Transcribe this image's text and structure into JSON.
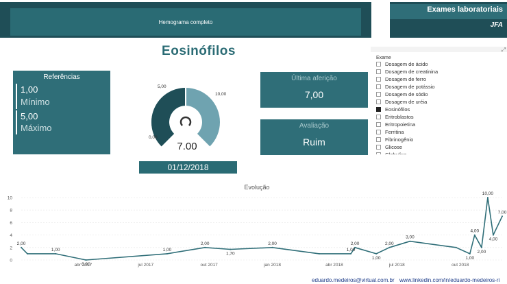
{
  "header": {
    "tab_label": "Hemograma completo",
    "app_title": "Exames laboratoriais",
    "app_subtitle": "JFA"
  },
  "exam": {
    "title": "Eosinófilos"
  },
  "references": {
    "heading": "Referências",
    "min_value": "1,00",
    "min_label": "Mínimo",
    "max_value": "5,00",
    "max_label": "Máximo"
  },
  "gauge": {
    "min_label": "0,00",
    "target_label": "5,00",
    "max_label": "10,00",
    "value_label": "7.00",
    "min": 0,
    "max": 10,
    "value": 7,
    "target": 5,
    "date": "01/12/2018"
  },
  "cards": {
    "last_label": "Última aferição",
    "last_value": "7,00",
    "eval_label": "Avaliação",
    "eval_value": "Ruim"
  },
  "slicer": {
    "header": "Exame",
    "items": [
      {
        "label": "Dosagem de ácido",
        "checked": false
      },
      {
        "label": "Dosagem de creatinina",
        "checked": false
      },
      {
        "label": "Dosagem de ferro",
        "checked": false
      },
      {
        "label": "Dosagem de potássio",
        "checked": false
      },
      {
        "label": "Dosagem de sódio",
        "checked": false
      },
      {
        "label": "Dosagem de uréia",
        "checked": false
      },
      {
        "label": "Eosinófilos",
        "checked": true
      },
      {
        "label": "Eritroblastos",
        "checked": false
      },
      {
        "label": "Eritropoietina",
        "checked": false
      },
      {
        "label": "Ferritina",
        "checked": false
      },
      {
        "label": "Fibrinogênio",
        "checked": false
      },
      {
        "label": "Glicose",
        "checked": false
      },
      {
        "label": "Globulina",
        "checked": false
      }
    ]
  },
  "evolution_title": "Evolução",
  "colors": {
    "dark_teal": "#1f4e57",
    "teal": "#2f6e78",
    "gauge_fill": "#6fa3b0",
    "line": "#2f6e78"
  },
  "chart_data": {
    "type": "line",
    "title": "Evolução",
    "xlabel": "",
    "ylabel": "",
    "ylim": [
      0,
      10
    ],
    "y_ticks": [
      "0",
      "2",
      "4",
      "6",
      "8",
      "10"
    ],
    "x_ticks": [
      "abr 2017",
      "jul 2017",
      "out 2017",
      "jan 2018",
      "abr 2018",
      "jul 2018",
      "out 2018"
    ],
    "x_tick_dates": [
      "2017-04-01",
      "2017-07-01",
      "2017-10-01",
      "2018-01-01",
      "2018-04-01",
      "2018-07-01",
      "2018-10-01"
    ],
    "x_range": [
      "2017-01-01",
      "2018-12-01"
    ],
    "grid": true,
    "series": [
      {
        "points": [
          {
            "x": "2017-01-01",
            "y": 2.0,
            "label": "2,00"
          },
          {
            "x": "2017-01-10",
            "y": 1.0,
            "label": ""
          },
          {
            "x": "2017-02-20",
            "y": 1.0,
            "label": "1,00"
          },
          {
            "x": "2017-04-05",
            "y": 0.0,
            "label": "0,00"
          },
          {
            "x": "2017-08-01",
            "y": 1.0,
            "label": "1,00"
          },
          {
            "x": "2017-09-25",
            "y": 2.0,
            "label": "2,00"
          },
          {
            "x": "2017-11-01",
            "y": 1.7,
            "label": "1,70"
          },
          {
            "x": "2018-01-01",
            "y": 2.0,
            "label": "2,00"
          },
          {
            "x": "2018-03-10",
            "y": 1.0,
            "label": ""
          },
          {
            "x": "2018-04-25",
            "y": 1.0,
            "label": "1,00"
          },
          {
            "x": "2018-05-01",
            "y": 2.0,
            "label": "2,00"
          },
          {
            "x": "2018-06-01",
            "y": 1.0,
            "label": "1,00"
          },
          {
            "x": "2018-06-20",
            "y": 2.0,
            "label": "2,00"
          },
          {
            "x": "2018-07-20",
            "y": 3.0,
            "label": "3,00"
          },
          {
            "x": "2018-09-25",
            "y": 2.0,
            "label": ""
          },
          {
            "x": "2018-10-15",
            "y": 1.0,
            "label": "1,00"
          },
          {
            "x": "2018-10-22",
            "y": 4.0,
            "label": "4,00"
          },
          {
            "x": "2018-11-01",
            "y": 2.0,
            "label": "2,00"
          },
          {
            "x": "2018-11-10",
            "y": 10.0,
            "label": "10,00"
          },
          {
            "x": "2018-11-18",
            "y": 4.0,
            "label": "4,00"
          },
          {
            "x": "2018-12-01",
            "y": 7.0,
            "label": "7,00"
          }
        ]
      }
    ]
  },
  "footer": {
    "email": "eduardo.medeiros@virtual.com.br",
    "linkedin": "www.linkedin.com/in/eduardo-medeiros-ri"
  }
}
